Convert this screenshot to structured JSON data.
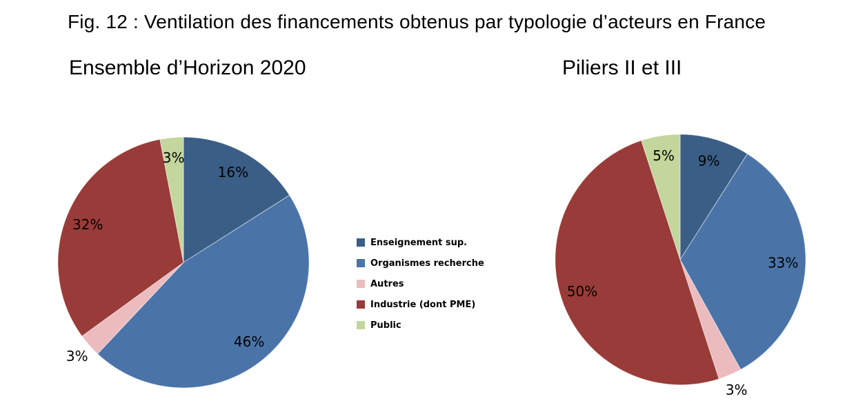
{
  "figure": {
    "title": "Fig. 12 : Ventilation des financements obtenus par typologie d’acteurs en France"
  },
  "legend": {
    "position": "center-between-pies",
    "items": [
      {
        "label": "Enseignement sup.",
        "color": "#3a5e86"
      },
      {
        "label": "Organismes recherche",
        "color": "#4a74a8"
      },
      {
        "label": "Autres",
        "color": "#ecbbbe"
      },
      {
        "label": "Industrie (dont PME)",
        "color": "#993b38"
      },
      {
        "label": "Public",
        "color": "#c3d69b"
      }
    ]
  },
  "chart_data": [
    {
      "type": "pie",
      "title": "Ensemble d’Horizon 2020",
      "categories": [
        "Enseignement sup.",
        "Organismes recherche",
        "Autres",
        "Industrie (dont PME)",
        "Public"
      ],
      "values": [
        16,
        46,
        3,
        32,
        3
      ],
      "data_labels": [
        "16%",
        "46%",
        "3%",
        "32%",
        "3%"
      ],
      "colors": [
        "#3a5e86",
        "#4a74a8",
        "#ecbbbe",
        "#993b38",
        "#c3d69b"
      ],
      "start_angle_deg": 0,
      "direction": "clockwise",
      "label_placement": [
        "inside",
        "inside",
        "outside",
        "inside",
        "inside"
      ]
    },
    {
      "type": "pie",
      "title": "Piliers II et III",
      "categories": [
        "Enseignement sup.",
        "Organismes recherche",
        "Autres",
        "Industrie (dont PME)",
        "Public"
      ],
      "values": [
        9,
        33,
        3,
        50,
        5
      ],
      "data_labels": [
        "9%",
        "33%",
        "3%",
        "50%",
        "5%"
      ],
      "colors": [
        "#3a5e86",
        "#4a74a8",
        "#ecbbbe",
        "#993b38",
        "#c3d69b"
      ],
      "start_angle_deg": 0,
      "direction": "clockwise",
      "label_placement": [
        "inside",
        "inside",
        "outside",
        "inside",
        "inside"
      ]
    }
  ]
}
